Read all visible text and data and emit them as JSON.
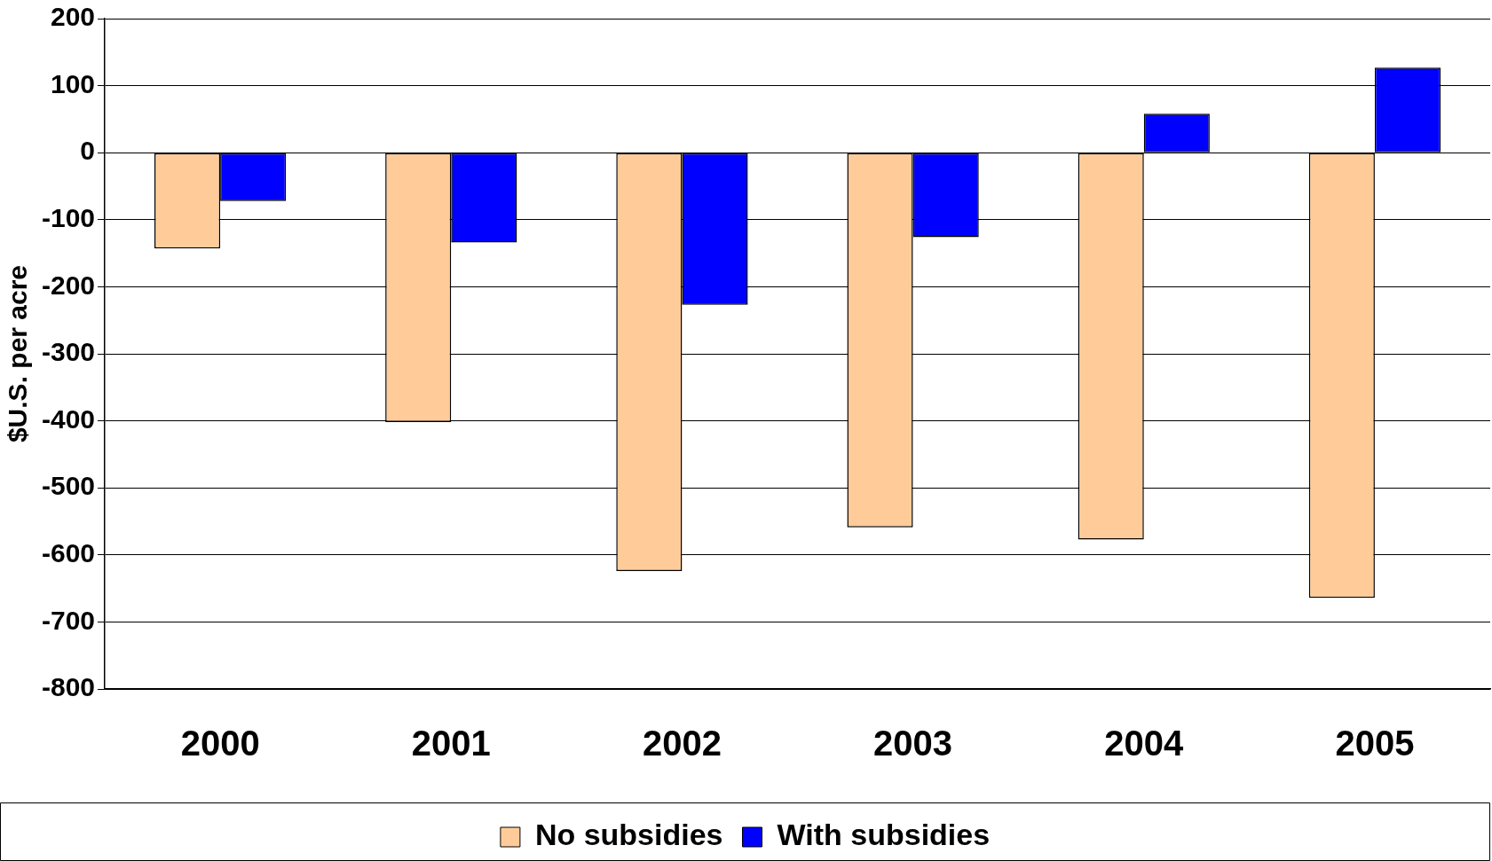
{
  "chart_data": {
    "type": "bar",
    "ylabel": "$U.S. per acre",
    "categories": [
      "2000",
      "2001",
      "2002",
      "2003",
      "2004",
      "2005"
    ],
    "series": [
      {
        "name": "No subsidies",
        "color": "#ffcc99",
        "values": [
          -143,
          -402,
          -624,
          -559,
          -577,
          -664
        ]
      },
      {
        "name": "With subsidies",
        "color": "#0000ff",
        "values": [
          -72,
          -134,
          -227,
          -126,
          58,
          127
        ]
      }
    ],
    "ylim": [
      -800,
      200
    ],
    "yticks": [
      -800,
      -700,
      -600,
      -500,
      -400,
      -300,
      -200,
      -100,
      0,
      100,
      200
    ],
    "grid": "y",
    "legend": "bottom"
  }
}
